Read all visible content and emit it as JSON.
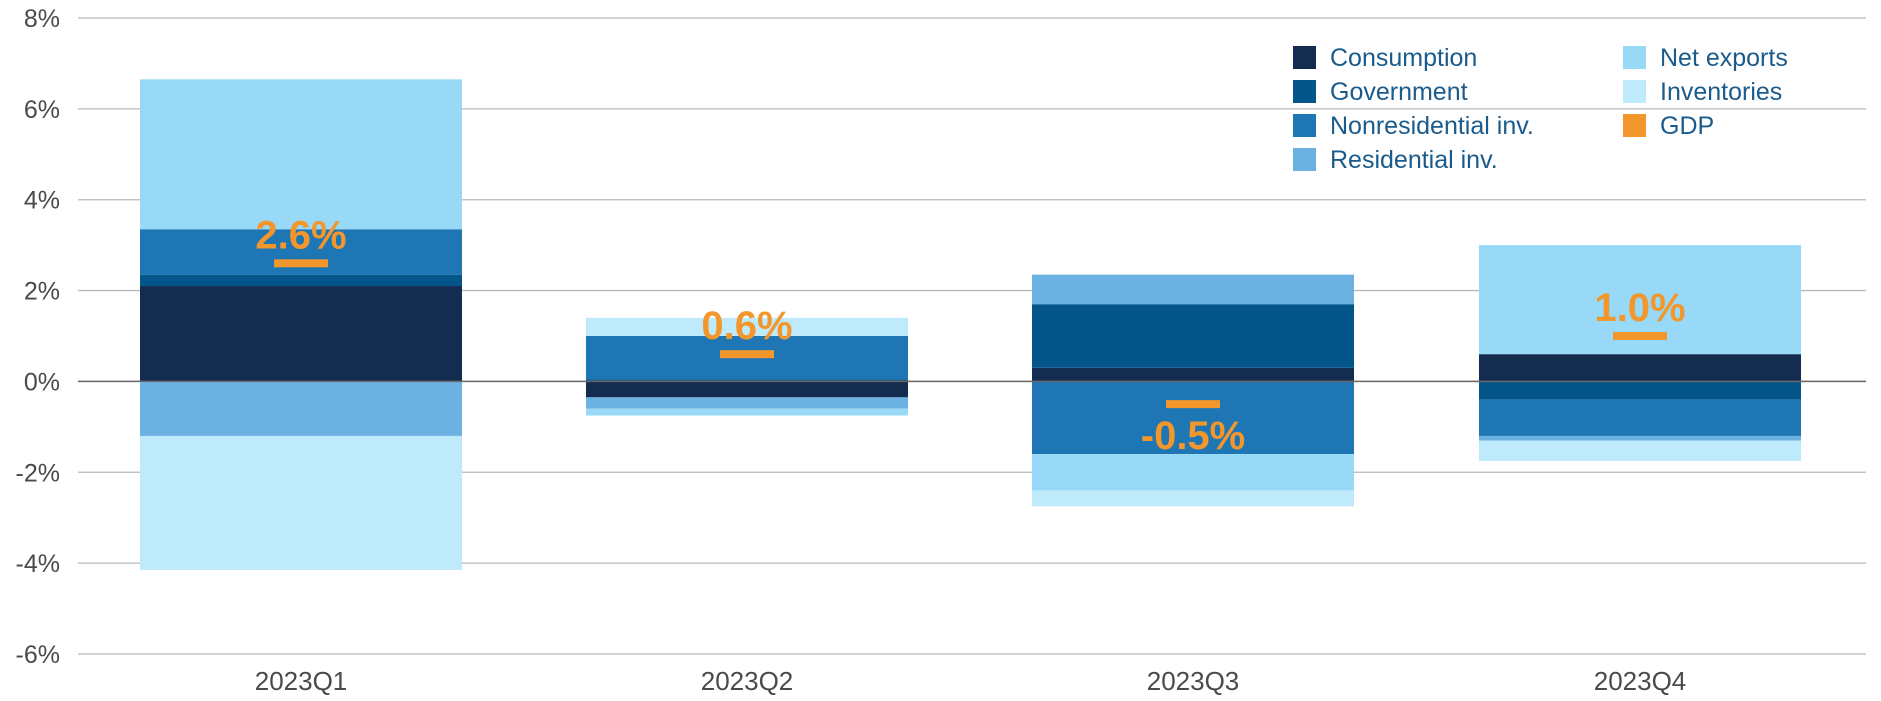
{
  "chart_data": {
    "type": "bar",
    "stacked": true,
    "categories": [
      "2023Q1",
      "2023Q2",
      "2023Q3",
      "2023Q4"
    ],
    "ylim": [
      -6,
      8
    ],
    "yticks": [
      -6,
      -4,
      -2,
      0,
      2,
      4,
      6,
      8
    ],
    "ytick_labels": [
      "-6%",
      "-4%",
      "-2%",
      "0%",
      "2%",
      "4%",
      "6%",
      "8%"
    ],
    "grid": true,
    "legend_position": "top-right",
    "series": [
      {
        "name": "Consumption",
        "color": "#152c51",
        "values": [
          2.1,
          -0.35,
          0.3,
          0.6
        ]
      },
      {
        "name": "Government",
        "color": "#03558a",
        "values": [
          0.25,
          0.05,
          1.4,
          -0.4
        ]
      },
      {
        "name": "Nonresidential inv.",
        "color": "#1f76b4",
        "values": [
          1.0,
          0.95,
          -1.6,
          -0.8
        ]
      },
      {
        "name": "Residential inv.",
        "color": "#6bb2e2",
        "values": [
          -1.2,
          -0.25,
          0.65,
          -0.1
        ]
      },
      {
        "name": "Net exports",
        "color": "#97d9f6",
        "values": [
          3.3,
          -0.15,
          -0.8,
          2.4
        ]
      },
      {
        "name": "Inventories",
        "color": "#bfeafc",
        "values": [
          -2.95,
          0.4,
          -0.35,
          -0.45
        ]
      }
    ],
    "gdp": {
      "name": "GDP",
      "color": "#f3962b",
      "values": [
        2.6,
        0.6,
        -0.5,
        1.0
      ],
      "labels": [
        "2.6%",
        "0.6%",
        "-0.5%",
        "1.0%"
      ]
    }
  }
}
